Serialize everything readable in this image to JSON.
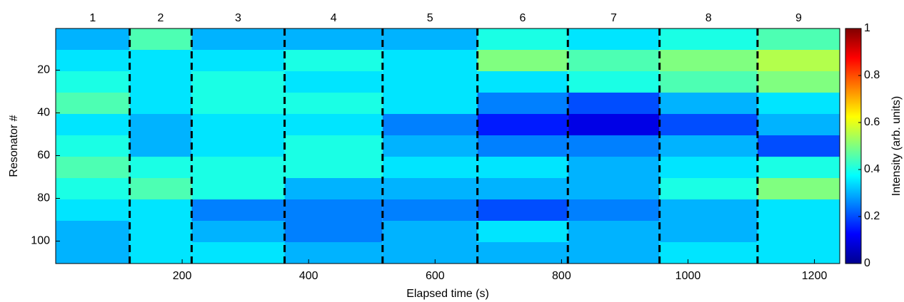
{
  "chart_data": {
    "type": "heatmap",
    "xlabel": "Elapsed time (s)",
    "ylabel": "Resonator #",
    "x_edges": [
      0,
      117,
      215,
      362,
      517,
      667,
      810,
      955,
      1110,
      1240
    ],
    "segment_labels": [
      "1",
      "2",
      "3",
      "4",
      "5",
      "6",
      "7",
      "8",
      "9"
    ],
    "y_edges": [
      0.5,
      10.5,
      20.5,
      30.5,
      40.5,
      50.5,
      60.5,
      70.5,
      80.5,
      90.5,
      100.5,
      110.5
    ],
    "z": [
      [
        0.3,
        0.45,
        0.3,
        0.3,
        0.3,
        0.4,
        0.35,
        0.4,
        0.45
      ],
      [
        0.35,
        0.35,
        0.35,
        0.4,
        0.35,
        0.5,
        0.45,
        0.5,
        0.55
      ],
      [
        0.4,
        0.35,
        0.4,
        0.35,
        0.35,
        0.35,
        0.4,
        0.45,
        0.5
      ],
      [
        0.45,
        0.35,
        0.4,
        0.4,
        0.35,
        0.25,
        0.2,
        0.3,
        0.35
      ],
      [
        0.35,
        0.3,
        0.35,
        0.35,
        0.25,
        0.15,
        0.1,
        0.2,
        0.3
      ],
      [
        0.4,
        0.3,
        0.35,
        0.4,
        0.3,
        0.25,
        0.25,
        0.3,
        0.2
      ],
      [
        0.45,
        0.4,
        0.4,
        0.4,
        0.35,
        0.35,
        0.3,
        0.35,
        0.4
      ],
      [
        0.4,
        0.45,
        0.4,
        0.3,
        0.3,
        0.3,
        0.3,
        0.4,
        0.5
      ],
      [
        0.35,
        0.35,
        0.25,
        0.25,
        0.25,
        0.2,
        0.25,
        0.3,
        0.35
      ],
      [
        0.3,
        0.35,
        0.3,
        0.25,
        0.3,
        0.35,
        0.3,
        0.3,
        0.35
      ],
      [
        0.3,
        0.35,
        0.35,
        0.3,
        0.3,
        0.3,
        0.3,
        0.35,
        0.35
      ]
    ],
    "xlim": [
      0,
      1240
    ],
    "xticks": [
      200,
      400,
      600,
      800,
      1000,
      1200
    ],
    "ylim": [
      0.5,
      110.5
    ],
    "yticks": [
      20,
      40,
      60,
      80,
      100
    ],
    "y_reversed": true,
    "colormap": "jet",
    "colorbar": {
      "label": "Intensity (arb. units)",
      "lim": [
        0,
        1
      ],
      "ticks": [
        0,
        0.2,
        0.4,
        0.6,
        0.8,
        1
      ]
    }
  }
}
